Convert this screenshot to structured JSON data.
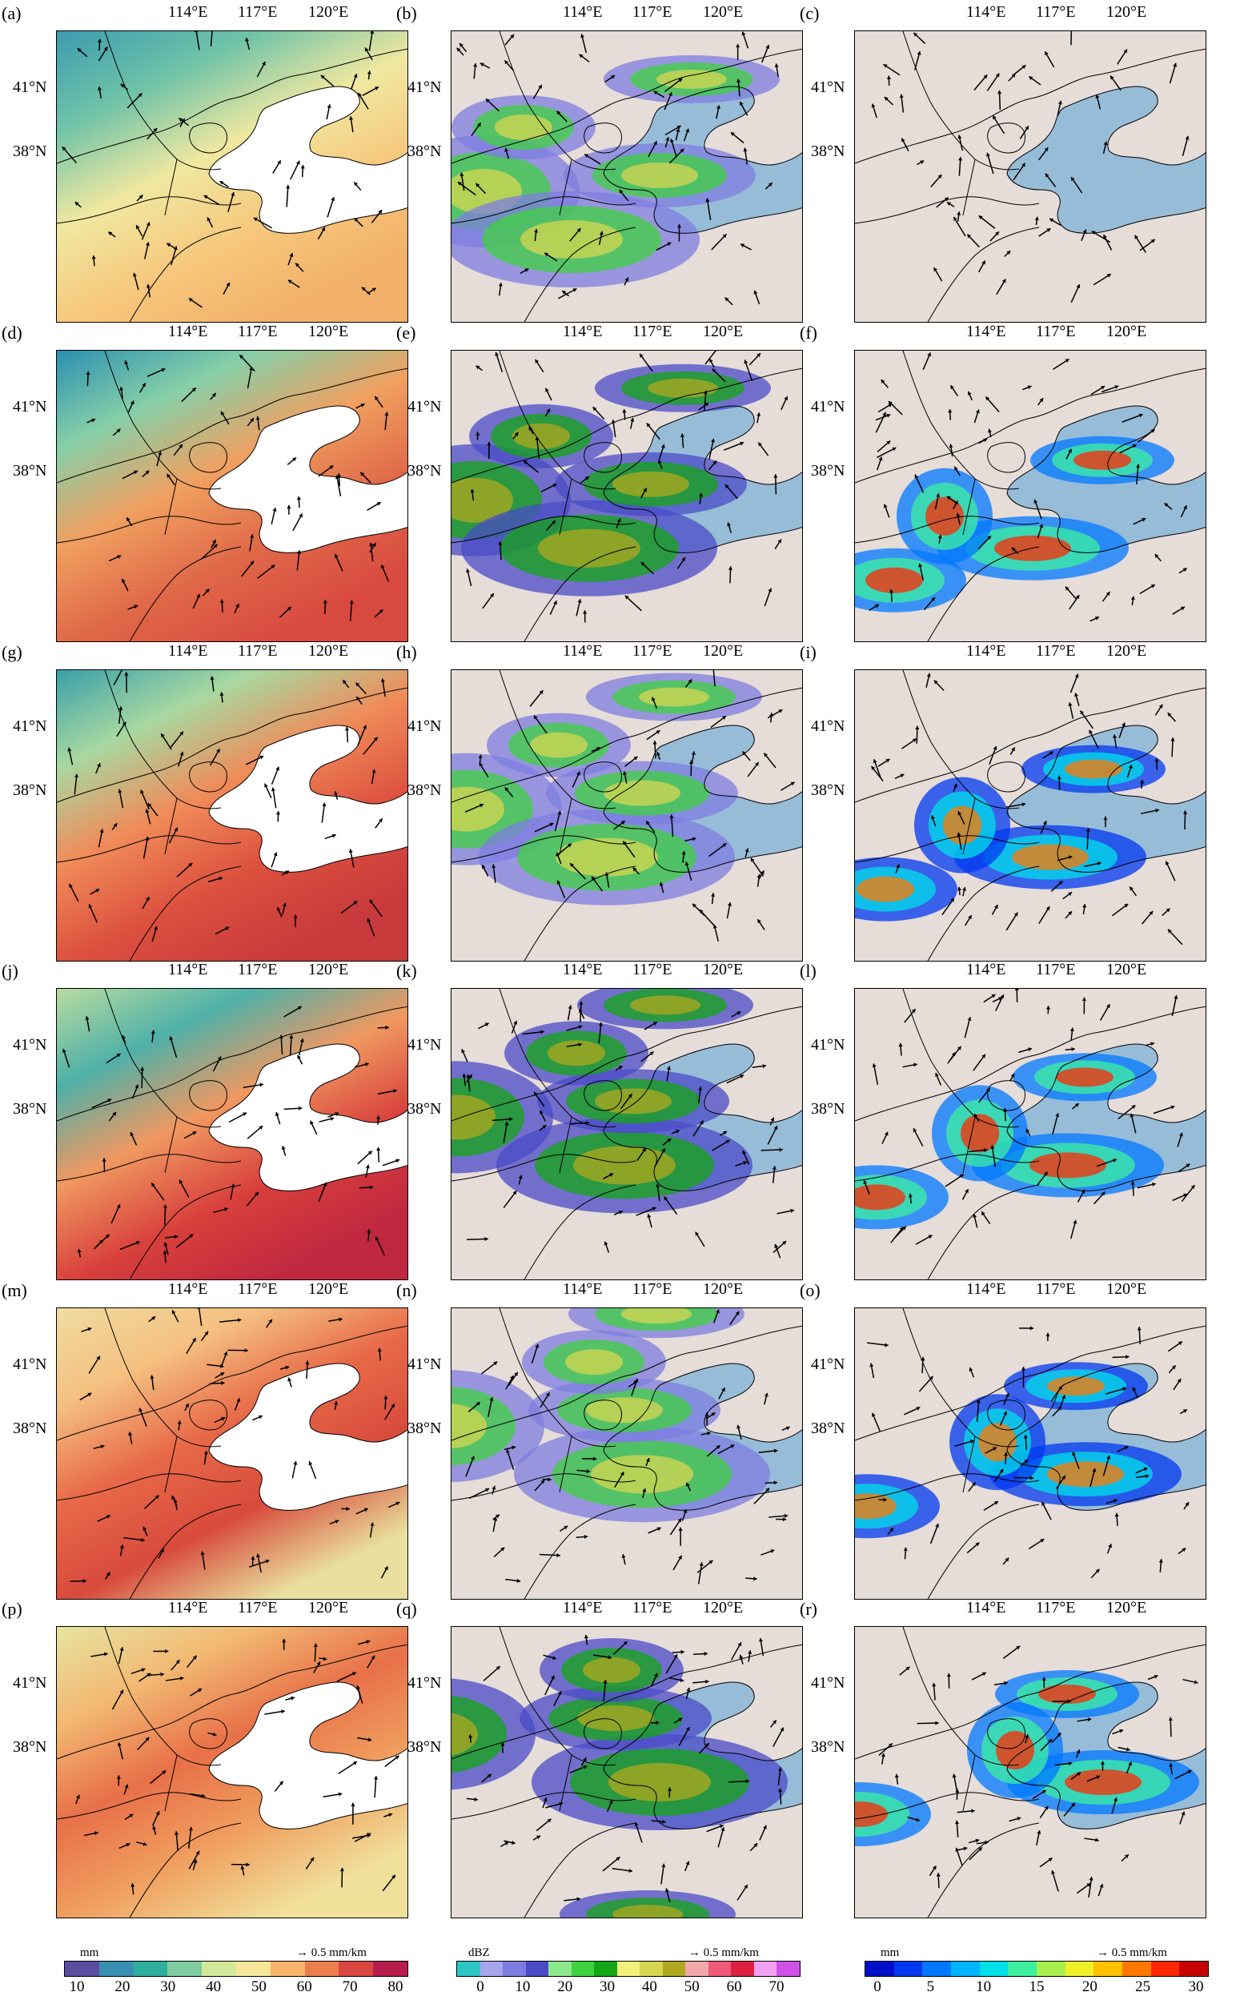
{
  "figure": {
    "lon_ticks": [
      "114°E",
      "117°E",
      "120°E"
    ],
    "lat_ticks": [
      "41°N",
      "38°N"
    ],
    "panels": [
      {
        "label": "(a)",
        "field": "pwv",
        "variant": 0
      },
      {
        "label": "(b)",
        "field": "radar",
        "variant": 0
      },
      {
        "label": "(c)",
        "field": "precip",
        "variant": 0
      },
      {
        "label": "(d)",
        "field": "pwv",
        "variant": 1
      },
      {
        "label": "(e)",
        "field": "radar",
        "variant": 1
      },
      {
        "label": "(f)",
        "field": "precip",
        "variant": 1
      },
      {
        "label": "(g)",
        "field": "pwv",
        "variant": 2
      },
      {
        "label": "(h)",
        "field": "radar",
        "variant": 2
      },
      {
        "label": "(i)",
        "field": "precip",
        "variant": 2
      },
      {
        "label": "(j)",
        "field": "pwv",
        "variant": 3
      },
      {
        "label": "(k)",
        "field": "radar",
        "variant": 3
      },
      {
        "label": "(l)",
        "field": "precip",
        "variant": 3
      },
      {
        "label": "(m)",
        "field": "pwv",
        "variant": 4
      },
      {
        "label": "(n)",
        "field": "radar",
        "variant": 4
      },
      {
        "label": "(o)",
        "field": "precip",
        "variant": 4
      },
      {
        "label": "(p)",
        "field": "pwv",
        "variant": 5
      },
      {
        "label": "(q)",
        "field": "radar",
        "variant": 5
      },
      {
        "label": "(r)",
        "field": "precip",
        "variant": 5
      }
    ]
  },
  "colorbars": [
    {
      "unit": "mm",
      "reference_vector": "0.5 mm/km",
      "ticks": [
        "10",
        "20",
        "30",
        "40",
        "50",
        "60",
        "70",
        "80"
      ],
      "colors": [
        "#5b4da0",
        "#3a8fb0",
        "#2fae9e",
        "#7fcca0",
        "#d2e99a",
        "#f7e69a",
        "#f6b56b",
        "#ec7d4d",
        "#d8463f",
        "#b61d4e"
      ]
    },
    {
      "unit": "dBZ",
      "reference_vector": "0.5 mm/km",
      "ticks": [
        "0",
        "10",
        "20",
        "30",
        "40",
        "50",
        "60",
        "70"
      ],
      "colors": [
        "#2ec4c4",
        "#a6a6ee",
        "#7d7de0",
        "#4b4bc8",
        "#8de88d",
        "#3fd23f",
        "#14a614",
        "#f2f27a",
        "#d6d650",
        "#b0a81e",
        "#f2a8a8",
        "#ee5a78",
        "#e02040",
        "#f2a0f2",
        "#d050e8"
      ]
    },
    {
      "unit": "mm",
      "reference_vector": "0.5 mm/km",
      "ticks": [
        "0",
        "5",
        "10",
        "15",
        "20",
        "25",
        "30"
      ],
      "colors": [
        "#0010c8",
        "#0038f0",
        "#0078ff",
        "#00b4ff",
        "#00e0e8",
        "#3cf0a0",
        "#a8f050",
        "#f0f028",
        "#ffc000",
        "#ff7800",
        "#ff2800",
        "#c80000"
      ]
    }
  ],
  "styling": {
    "sea_color": "#97bcd8",
    "land_color": "#e6dcd8",
    "pwv_sea_color": "#ffffff"
  }
}
